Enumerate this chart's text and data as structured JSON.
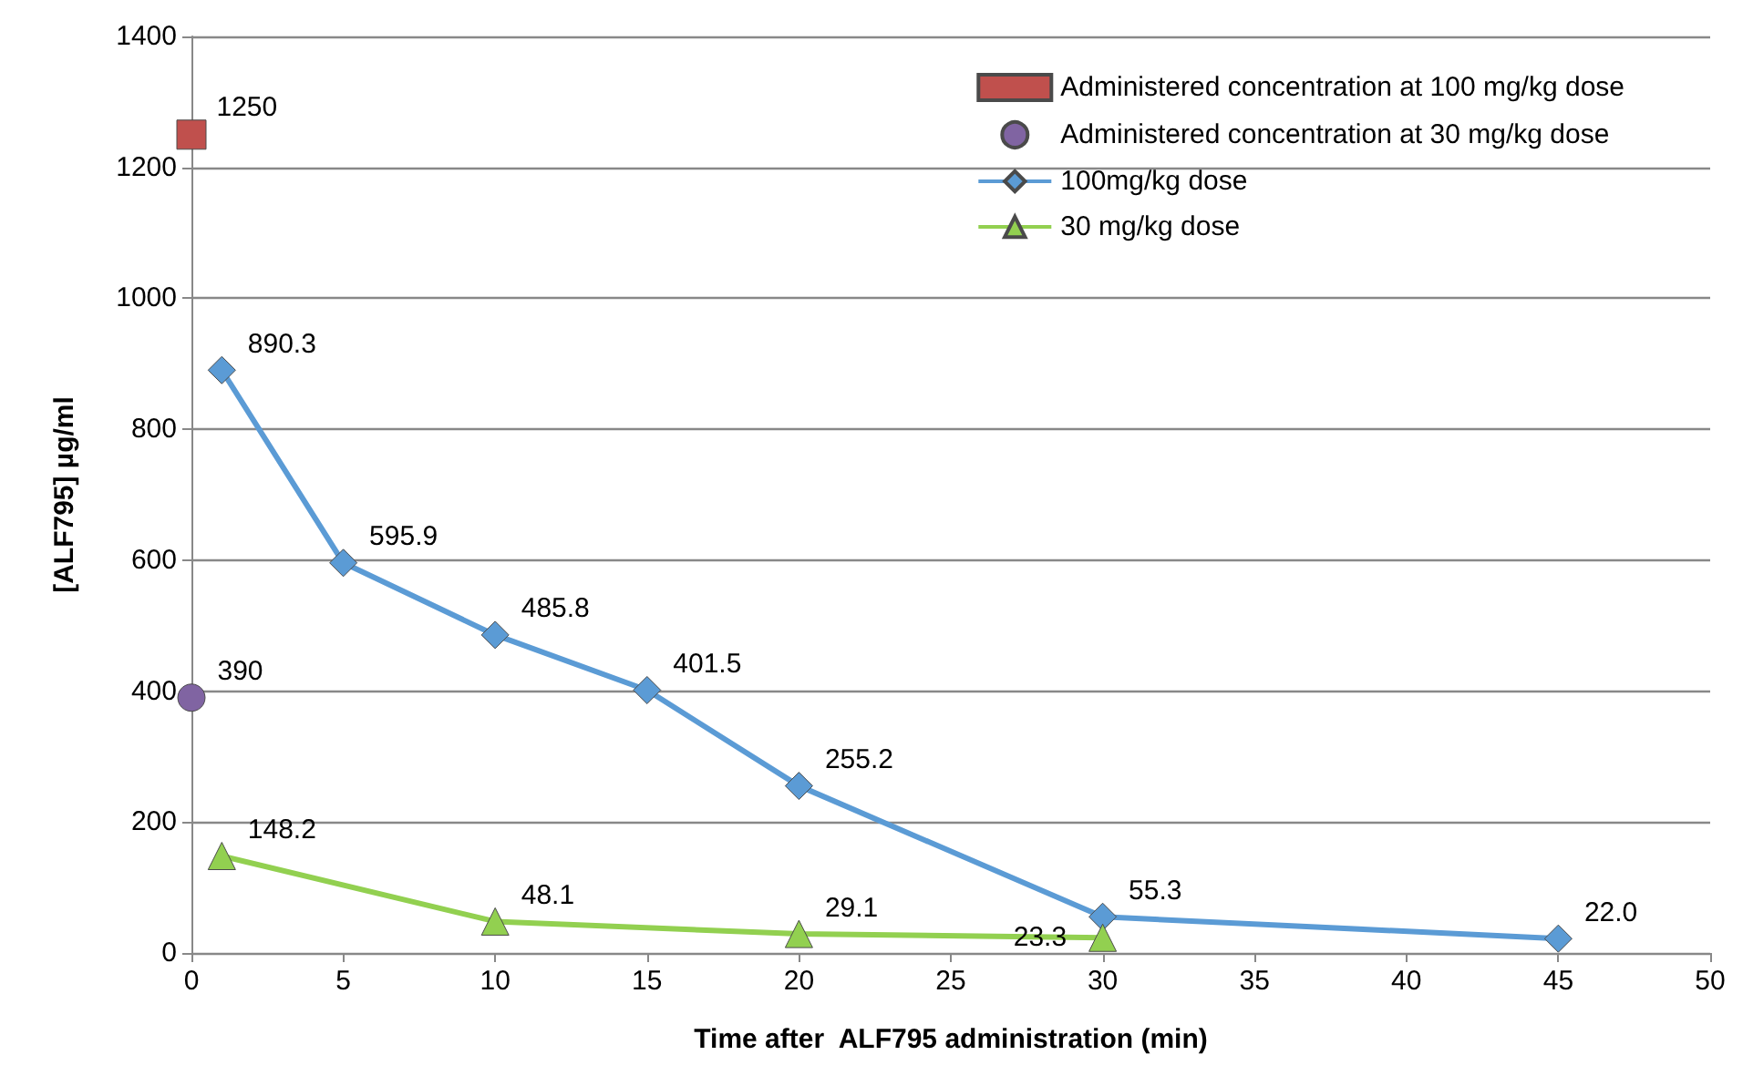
{
  "chart_data": {
    "type": "line",
    "xlabel": "Time after  ALF795 administration (min)",
    "ylabel": "[ALF795] µg/ml",
    "xlim": [
      0,
      50
    ],
    "xticks": [
      0,
      5,
      10,
      15,
      20,
      25,
      30,
      35,
      40,
      45,
      50
    ],
    "ylim": [
      0,
      1400
    ],
    "yticks": [
      0,
      200,
      400,
      600,
      800,
      1000,
      1200,
      1400
    ],
    "grid": "y",
    "legend": "top right",
    "series": [
      {
        "name": "Administered concentration at 100 mg/kg dose",
        "type": "scatter",
        "marker": "square",
        "color": "#c0504d",
        "x": [
          0
        ],
        "values": [
          1250
        ],
        "value_labels": [
          "1250"
        ]
      },
      {
        "name": "Administered concentration at 30 mg/kg dose",
        "type": "scatter",
        "marker": "circle",
        "color": "#8064a2",
        "x": [
          0
        ],
        "values": [
          390
        ],
        "value_labels": [
          "390"
        ]
      },
      {
        "name": "100mg/kg dose",
        "type": "line",
        "marker": "diamond",
        "color": "#5b9bd5",
        "x": [
          1,
          5,
          10,
          15,
          20,
          30,
          45
        ],
        "values": [
          890.3,
          595.9,
          485.8,
          401.5,
          255.2,
          55.3,
          22.0
        ],
        "value_labels": [
          "890.3",
          "595.9",
          "485.8",
          "401.5",
          "255.2",
          "55.3",
          "22.0"
        ]
      },
      {
        "name": "30 mg/kg dose",
        "type": "line",
        "marker": "triangle",
        "color": "#92d050",
        "x": [
          1,
          10,
          20,
          30
        ],
        "values": [
          148.2,
          48.1,
          29.1,
          23.3
        ],
        "value_labels": [
          "148.2",
          "48.1",
          "29.1",
          "23.3"
        ]
      }
    ]
  }
}
